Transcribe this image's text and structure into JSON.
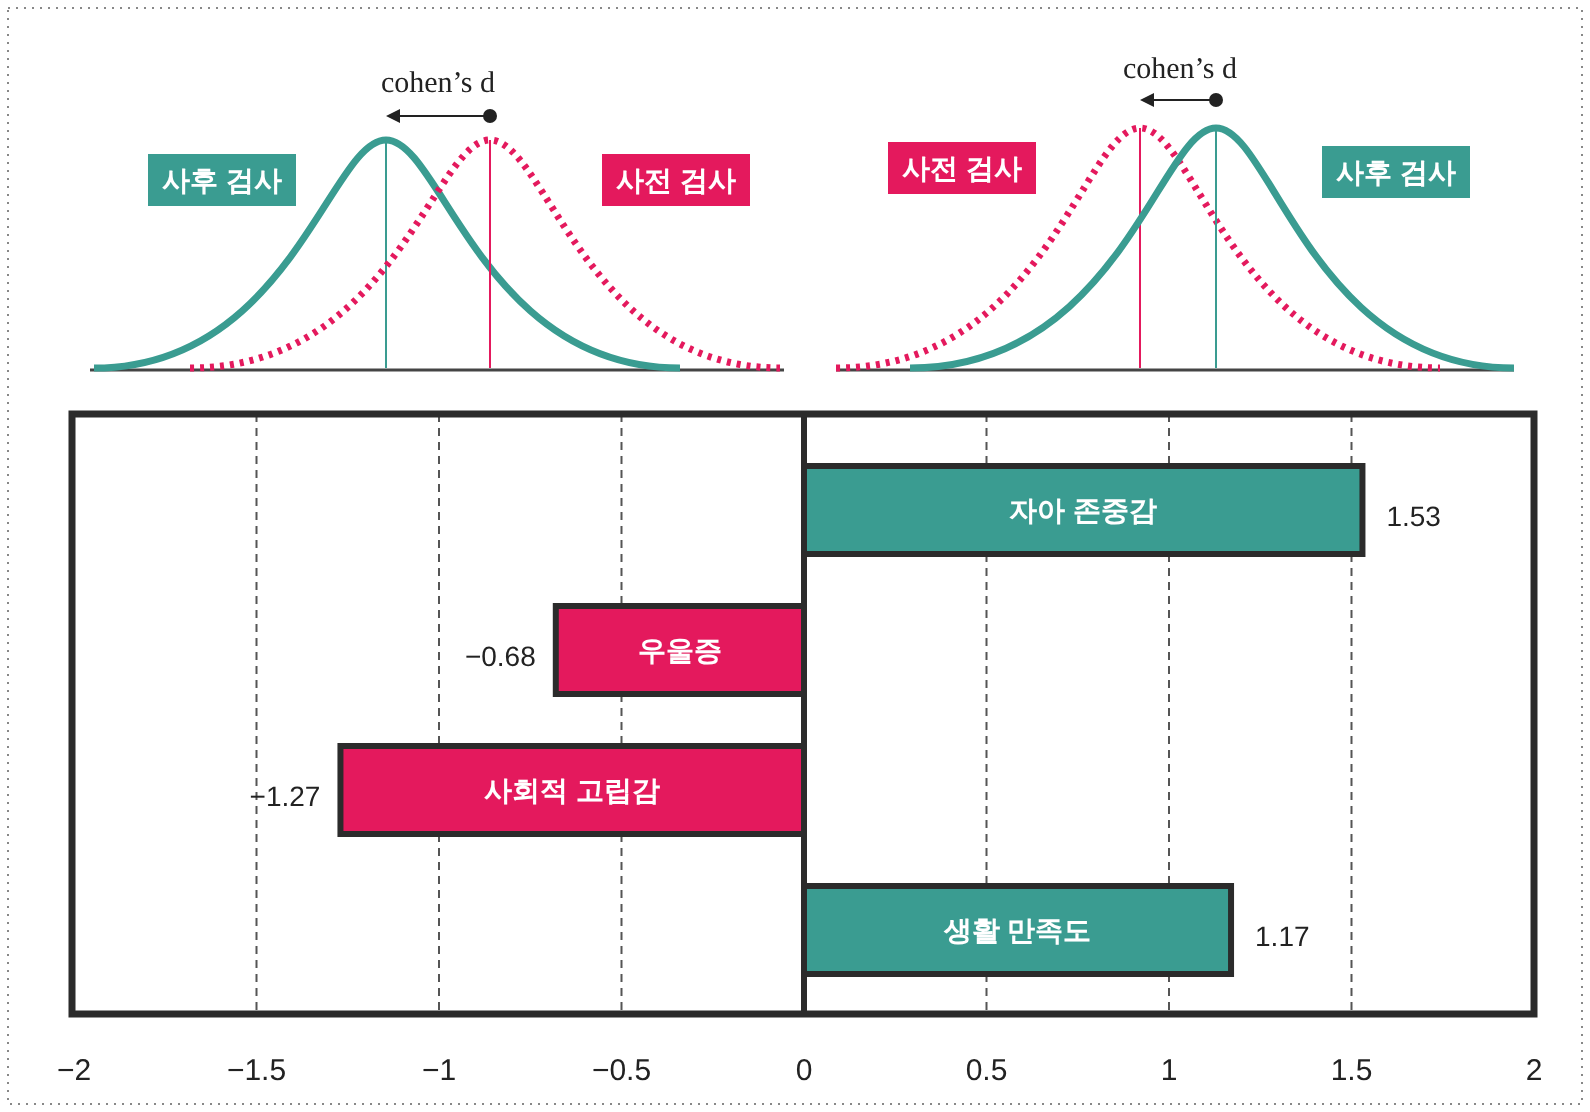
{
  "chart_data": {
    "type": "bar",
    "orientation": "horizontal",
    "categories": [
      "자아 존중감",
      "우울증",
      "사회적 고립감",
      "생활 만족도"
    ],
    "values": [
      1.53,
      -0.68,
      -1.27,
      1.17
    ],
    "colors": [
      "#3a9c91",
      "#e4195d",
      "#e4195d",
      "#3a9c91"
    ],
    "xlim": [
      -2,
      2
    ],
    "xticks": [
      -2,
      -1.5,
      -1,
      -0.5,
      0,
      0.5,
      1,
      1.5,
      2
    ],
    "grid": "x",
    "data_labels": true,
    "ref_lines": [
      {
        "axis": "x",
        "value": 0,
        "color": "#2b2b2b",
        "line_style": "solid"
      }
    ],
    "annotations": [
      "cohen’s d",
      "사후 검사",
      "사전 검사",
      "cohen’s d",
      "사전 검사",
      "사후 검사"
    ]
  }
}
